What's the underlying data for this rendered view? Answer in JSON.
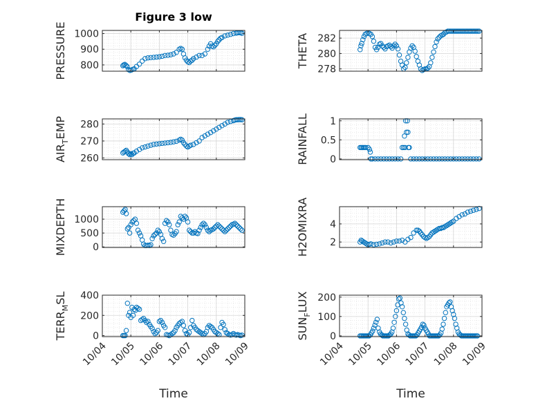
{
  "figure": {
    "title": "Figure 3 low",
    "marker_color": "#0072bd"
  },
  "chart_data": [
    {
      "type": "scatter",
      "ylabel": "PRESSURE",
      "ylim": [
        760,
        1020
      ],
      "yticks": [
        800,
        900,
        1000
      ],
      "xlim": [
        4,
        9
      ],
      "x": [
        4.72,
        4.75,
        4.79,
        4.83,
        4.87,
        4.92,
        4.97,
        5.02,
        5.07,
        5.12,
        5.2,
        5.3,
        5.4,
        5.5,
        5.6,
        5.7,
        5.8,
        5.9,
        6.0,
        6.1,
        6.2,
        6.3,
        6.4,
        6.5,
        6.6,
        6.7,
        6.75,
        6.8,
        6.85,
        6.9,
        6.95,
        7.0,
        7.05,
        7.1,
        7.15,
        7.2,
        7.3,
        7.4,
        7.5,
        7.6,
        7.7,
        7.75,
        7.8,
        7.85,
        7.9,
        7.95,
        8.0,
        8.05,
        8.1,
        8.15,
        8.2,
        8.3,
        8.4,
        8.5,
        8.6,
        8.7,
        8.75,
        8.8,
        8.85,
        8.9
      ],
      "y": [
        795,
        800,
        803,
        797,
        790,
        770,
        765,
        768,
        772,
        775,
        790,
        805,
        825,
        840,
        845,
        847,
        848,
        850,
        852,
        855,
        860,
        862,
        865,
        870,
        880,
        900,
        905,
        900,
        870,
        845,
        830,
        820,
        815,
        825,
        830,
        840,
        850,
        860,
        860,
        870,
        900,
        920,
        935,
        920,
        915,
        925,
        935,
        950,
        960,
        970,
        975,
        985,
        990,
        995,
        1000,
        1003,
        1005,
        1006,
        1005,
        1002
      ]
    },
    {
      "type": "scatter",
      "ylabel": "THETA",
      "ylim": [
        277.7,
        283.0
      ],
      "yticks": [
        278,
        280,
        282
      ],
      "xlim": [
        4,
        9
      ],
      "x": [
        4.72,
        4.75,
        4.78,
        4.82,
        4.86,
        4.9,
        4.95,
        5.0,
        5.05,
        5.1,
        5.15,
        5.2,
        5.25,
        5.3,
        5.35,
        5.4,
        5.45,
        5.5,
        5.55,
        5.6,
        5.65,
        5.7,
        5.75,
        5.8,
        5.85,
        5.9,
        5.95,
        6.0,
        6.05,
        6.1,
        6.15,
        6.2,
        6.25,
        6.3,
        6.35,
        6.4,
        6.45,
        6.5,
        6.55,
        6.6,
        6.65,
        6.7,
        6.75,
        6.8,
        6.85,
        6.9,
        6.95,
        7.0,
        7.05,
        7.1,
        7.15,
        7.2,
        7.25,
        7.3,
        7.35,
        7.4,
        7.45,
        7.5,
        7.55,
        7.6,
        7.65,
        7.7,
        7.75,
        7.8,
        7.85,
        7.9,
        7.95,
        8.0,
        8.05,
        8.1,
        8.15,
        8.2,
        8.25,
        8.3,
        8.35,
        8.4,
        8.45,
        8.5,
        8.55,
        8.6,
        8.65,
        8.7,
        8.75,
        8.8,
        8.85,
        8.9
      ],
      "y": [
        280.5,
        281.0,
        281.3,
        281.8,
        282.2,
        282.5,
        282.6,
        282.7,
        282.6,
        282.5,
        282.2,
        281.6,
        280.8,
        280.5,
        280.8,
        281.2,
        281.3,
        281.0,
        280.8,
        280.6,
        280.9,
        281.0,
        281.1,
        280.9,
        280.7,
        281.0,
        281.2,
        281.0,
        280.6,
        279.8,
        279.0,
        278.5,
        278.0,
        278.2,
        278.8,
        279.5,
        280.2,
        280.7,
        281.0,
        280.8,
        280.3,
        279.6,
        279.0,
        278.5,
        278.0,
        277.8,
        277.9,
        278.0,
        278.0,
        278.1,
        278.3,
        278.8,
        279.5,
        280.2,
        280.9,
        281.5,
        281.9,
        282.1,
        282.3,
        282.4,
        282.5,
        282.7,
        282.8,
        282.9,
        282.9,
        282.9,
        282.9,
        282.9,
        282.9,
        282.9,
        282.9,
        282.9,
        282.9,
        282.9,
        282.9,
        282.9,
        282.9,
        282.9,
        282.9,
        282.9,
        282.9,
        282.9,
        282.9,
        282.9,
        282.9,
        282.9
      ]
    },
    {
      "type": "scatter",
      "ylabel": "AIR",
      "ylabel_sub": "T",
      "ylabel_rest": "EMP",
      "ylim": [
        259,
        283
      ],
      "yticks": [
        260,
        270,
        280
      ],
      "xlim": [
        4,
        9
      ],
      "x": [
        4.72,
        4.76,
        4.8,
        4.84,
        4.88,
        4.92,
        4.96,
        5.0,
        5.04,
        5.08,
        5.12,
        5.2,
        5.3,
        5.4,
        5.5,
        5.6,
        5.7,
        5.8,
        5.9,
        6.0,
        6.1,
        6.2,
        6.3,
        6.4,
        6.5,
        6.6,
        6.7,
        6.75,
        6.8,
        6.85,
        6.9,
        6.95,
        7.0,
        7.05,
        7.1,
        7.2,
        7.3,
        7.4,
        7.5,
        7.6,
        7.7,
        7.8,
        7.9,
        8.0,
        8.1,
        8.2,
        8.3,
        8.4,
        8.5,
        8.6,
        8.65,
        8.7,
        8.75,
        8.8,
        8.85,
        8.9
      ],
      "y": [
        263,
        263.5,
        264,
        264.5,
        263.5,
        262.5,
        262,
        262.5,
        262,
        262.8,
        263,
        264,
        265,
        266,
        266.5,
        267,
        267.5,
        268,
        268.2,
        268.4,
        268.6,
        268.8,
        269,
        269.2,
        269.5,
        269.8,
        270.5,
        271,
        270.5,
        269,
        268,
        267,
        266.5,
        267,
        267.5,
        268,
        269,
        270,
        272,
        273,
        274,
        275,
        276,
        277,
        278,
        279,
        280,
        281,
        281.5,
        282,
        282.3,
        282.5,
        282.5,
        282.6,
        282.6,
        282.5
      ]
    },
    {
      "type": "scatter",
      "ylabel": "RAINFALL",
      "ylim": [
        -0.02,
        1.05
      ],
      "yticks": [
        0,
        0.5,
        1
      ],
      "xlim": [
        4,
        9
      ],
      "x": [
        4.72,
        4.76,
        4.8,
        4.84,
        4.88,
        4.92,
        5.0,
        5.05,
        5.08,
        5.1,
        5.15,
        5.25,
        5.35,
        5.45,
        5.55,
        5.65,
        5.75,
        5.85,
        5.95,
        6.05,
        6.15,
        6.2,
        6.25,
        6.28,
        6.3,
        6.32,
        6.35,
        6.38,
        6.4,
        6.42,
        6.45,
        6.5,
        6.6,
        6.7,
        6.8,
        6.9,
        7.0,
        7.1,
        7.2,
        7.3,
        7.4,
        7.5,
        7.6,
        7.7,
        7.8,
        7.9,
        8.0,
        8.1,
        8.2,
        8.3,
        8.4,
        8.5,
        8.6,
        8.7,
        8.8,
        8.9
      ],
      "y": [
        0.3,
        0.3,
        0.3,
        0.3,
        0.3,
        0.3,
        0.3,
        0.25,
        0.18,
        0,
        0,
        0,
        0,
        0,
        0,
        0,
        0,
        0,
        0,
        0,
        0,
        0.3,
        0.3,
        0.6,
        0.3,
        1.0,
        0.7,
        1.0,
        0.7,
        0.3,
        0.3,
        0,
        0,
        0,
        0,
        0,
        0,
        0,
        0,
        0,
        0,
        0,
        0,
        0,
        0,
        0,
        0,
        0,
        0,
        0,
        0,
        0,
        0,
        0,
        0,
        0
      ]
    },
    {
      "type": "scatter",
      "ylabel": "MIXDEPTH",
      "ylim": [
        -20,
        1450
      ],
      "yticks": [
        0,
        500,
        1000
      ],
      "xlim": [
        4,
        9
      ],
      "x": [
        4.72,
        4.76,
        4.8,
        4.84,
        4.88,
        4.92,
        4.96,
        5.0,
        5.05,
        5.1,
        5.15,
        5.2,
        5.25,
        5.3,
        5.35,
        5.4,
        5.45,
        5.5,
        5.55,
        5.6,
        5.65,
        5.7,
        5.75,
        5.8,
        5.85,
        5.9,
        5.95,
        6.0,
        6.05,
        6.1,
        6.15,
        6.2,
        6.25,
        6.3,
        6.35,
        6.4,
        6.45,
        6.5,
        6.55,
        6.6,
        6.65,
        6.7,
        6.75,
        6.8,
        6.85,
        6.9,
        6.95,
        7.0,
        7.05,
        7.1,
        7.15,
        7.2,
        7.25,
        7.3,
        7.35,
        7.4,
        7.45,
        7.5,
        7.55,
        7.6,
        7.65,
        7.7,
        7.75,
        7.8,
        7.85,
        7.9,
        7.95,
        8.0,
        8.05,
        8.1,
        8.15,
        8.2,
        8.25,
        8.3,
        8.35,
        8.4,
        8.45,
        8.5,
        8.55,
        8.6,
        8.65,
        8.7,
        8.75,
        8.8,
        8.85,
        8.9
      ],
      "y": [
        1250,
        1300,
        1350,
        1200,
        650,
        700,
        500,
        800,
        900,
        950,
        1000,
        850,
        600,
        500,
        400,
        250,
        100,
        50,
        50,
        60,
        50,
        80,
        300,
        400,
        450,
        500,
        600,
        550,
        450,
        300,
        200,
        850,
        950,
        900,
        800,
        600,
        450,
        420,
        480,
        550,
        800,
        900,
        1100,
        1050,
        1000,
        1100,
        1050,
        900,
        600,
        550,
        500,
        500,
        550,
        500,
        480,
        600,
        700,
        800,
        850,
        800,
        700,
        600,
        550,
        600,
        620,
        650,
        700,
        750,
        800,
        750,
        700,
        650,
        600,
        550,
        600,
        650,
        700,
        750,
        800,
        820,
        850,
        800,
        750,
        700,
        650,
        600
      ]
    },
    {
      "type": "scatter",
      "ylabel": "H2OMIXRA",
      "ylim": [
        1.4,
        5.9
      ],
      "yticks": [
        2,
        4
      ],
      "xlim": [
        4,
        9
      ],
      "x": [
        4.72,
        4.76,
        4.8,
        4.85,
        4.9,
        4.95,
        5.0,
        5.05,
        5.1,
        5.2,
        5.3,
        5.4,
        5.5,
        5.6,
        5.7,
        5.8,
        5.9,
        6.0,
        6.1,
        6.2,
        6.3,
        6.4,
        6.5,
        6.6,
        6.7,
        6.75,
        6.8,
        6.85,
        6.9,
        6.95,
        7.0,
        7.05,
        7.1,
        7.15,
        7.2,
        7.25,
        7.3,
        7.35,
        7.4,
        7.45,
        7.5,
        7.55,
        7.6,
        7.65,
        7.7,
        7.75,
        7.8,
        7.85,
        7.9,
        7.95,
        8.0,
        8.1,
        8.2,
        8.3,
        8.4,
        8.5,
        8.6,
        8.7,
        8.8,
        8.9
      ],
      "y": [
        2.0,
        2.2,
        2.1,
        2.0,
        1.9,
        1.8,
        1.7,
        1.75,
        1.8,
        1.7,
        1.75,
        1.8,
        1.9,
        2.0,
        2.0,
        1.9,
        2.0,
        2.1,
        2.1,
        2.2,
        2.0,
        2.3,
        2.5,
        3.0,
        3.3,
        3.3,
        3.2,
        3.0,
        2.8,
        2.6,
        2.5,
        2.4,
        2.5,
        2.6,
        2.8,
        3.0,
        3.1,
        3.2,
        3.3,
        3.4,
        3.5,
        3.5,
        3.6,
        3.6,
        3.7,
        3.8,
        3.9,
        4.0,
        4.1,
        4.2,
        4.3,
        4.6,
        4.8,
        5.0,
        5.1,
        5.3,
        5.4,
        5.5,
        5.6,
        5.7
      ]
    },
    {
      "type": "scatter",
      "ylabel": "TERR",
      "ylabel_sub": "M",
      "ylabel_rest": "SL",
      "ylim": [
        -10,
        400
      ],
      "yticks": [
        0,
        200,
        400
      ],
      "xlim": [
        4,
        9
      ],
      "x": [
        4.72,
        4.76,
        4.8,
        4.84,
        4.88,
        4.92,
        4.96,
        5.0,
        5.04,
        5.08,
        5.12,
        5.16,
        5.2,
        5.25,
        5.3,
        5.35,
        5.4,
        5.45,
        5.5,
        5.55,
        5.6,
        5.65,
        5.7,
        5.75,
        5.8,
        5.85,
        5.9,
        5.95,
        6.0,
        6.05,
        6.1,
        6.15,
        6.2,
        6.25,
        6.3,
        6.35,
        6.4,
        6.45,
        6.5,
        6.55,
        6.6,
        6.65,
        6.7,
        6.75,
        6.8,
        6.85,
        6.9,
        6.95,
        7.0,
        7.05,
        7.1,
        7.15,
        7.2,
        7.25,
        7.3,
        7.35,
        7.4,
        7.45,
        7.5,
        7.55,
        7.6,
        7.65,
        7.7,
        7.75,
        7.8,
        7.85,
        7.9,
        7.95,
        8.0,
        8.05,
        8.1,
        8.15,
        8.2,
        8.25,
        8.3,
        8.35,
        8.4,
        8.45,
        8.5,
        8.55,
        8.6,
        8.65,
        8.7,
        8.75,
        8.8,
        8.85,
        8.9
      ],
      "y": [
        0,
        0,
        0,
        50,
        320,
        200,
        230,
        180,
        280,
        200,
        260,
        250,
        280,
        270,
        260,
        150,
        160,
        170,
        150,
        130,
        140,
        110,
        90,
        70,
        40,
        20,
        30,
        50,
        140,
        150,
        130,
        100,
        80,
        10,
        5,
        0,
        10,
        20,
        30,
        50,
        80,
        100,
        120,
        130,
        140,
        100,
        50,
        20,
        10,
        30,
        80,
        150,
        100,
        80,
        60,
        50,
        40,
        30,
        20,
        10,
        20,
        40,
        80,
        100,
        90,
        80,
        60,
        40,
        30,
        20,
        10,
        80,
        130,
        110,
        60,
        30,
        20,
        10,
        5,
        10,
        20,
        10,
        5,
        10,
        5,
        0,
        5
      ]
    },
    {
      "type": "scatter",
      "ylabel": "SUN",
      "ylabel_sub": "F",
      "ylabel_rest": "LUX",
      "ylim": [
        -4,
        210
      ],
      "yticks": [
        0,
        100,
        200
      ],
      "xlim": [
        4,
        9
      ],
      "x": [
        4.72,
        4.76,
        4.8,
        4.84,
        4.88,
        4.92,
        4.96,
        5.0,
        5.04,
        5.08,
        5.12,
        5.16,
        5.2,
        5.24,
        5.28,
        5.32,
        5.36,
        5.4,
        5.44,
        5.48,
        5.52,
        5.56,
        5.6,
        5.64,
        5.68,
        5.72,
        5.76,
        5.8,
        5.84,
        5.88,
        5.92,
        5.96,
        6.0,
        6.04,
        6.08,
        6.12,
        6.16,
        6.2,
        6.24,
        6.28,
        6.32,
        6.36,
        6.4,
        6.44,
        6.48,
        6.52,
        6.56,
        6.6,
        6.64,
        6.68,
        6.72,
        6.76,
        6.8,
        6.84,
        6.88,
        6.92,
        6.96,
        7.0,
        7.04,
        7.08,
        7.12,
        7.16,
        7.2,
        7.24,
        7.28,
        7.32,
        7.36,
        7.4,
        7.44,
        7.48,
        7.52,
        7.56,
        7.6,
        7.64,
        7.68,
        7.72,
        7.76,
        7.8,
        7.84,
        7.88,
        7.92,
        7.96,
        8.0,
        8.04,
        8.08,
        8.12,
        8.16,
        8.2,
        8.24,
        8.28,
        8.32,
        8.36,
        8.4,
        8.44,
        8.48,
        8.52,
        8.56,
        8.6,
        8.64,
        8.68,
        8.72,
        8.76,
        8.8,
        8.84
      ],
      "y": [
        0,
        0,
        0,
        0,
        0,
        0,
        0,
        0,
        0,
        5,
        15,
        25,
        40,
        55,
        70,
        85,
        40,
        20,
        10,
        5,
        0,
        0,
        0,
        0,
        0,
        0,
        5,
        10,
        20,
        40,
        70,
        100,
        130,
        160,
        190,
        195,
        170,
        150,
        120,
        90,
        60,
        30,
        10,
        5,
        0,
        0,
        0,
        0,
        0,
        0,
        5,
        15,
        25,
        35,
        45,
        60,
        55,
        40,
        30,
        20,
        10,
        0,
        0,
        0,
        0,
        0,
        0,
        0,
        0,
        0,
        5,
        15,
        35,
        60,
        90,
        120,
        150,
        160,
        170,
        175,
        150,
        130,
        110,
        90,
        60,
        40,
        20,
        10,
        5,
        0,
        0,
        0,
        0,
        0,
        0,
        0,
        0,
        0,
        0,
        0,
        0,
        0,
        0,
        0
      ]
    }
  ],
  "axes": {
    "xticklabels": [
      "10/04",
      "10/05",
      "10/06",
      "10/07",
      "10/08",
      "10/09"
    ],
    "xticks": [
      4,
      5,
      6,
      7,
      8,
      9
    ],
    "xlabel": "Time"
  }
}
